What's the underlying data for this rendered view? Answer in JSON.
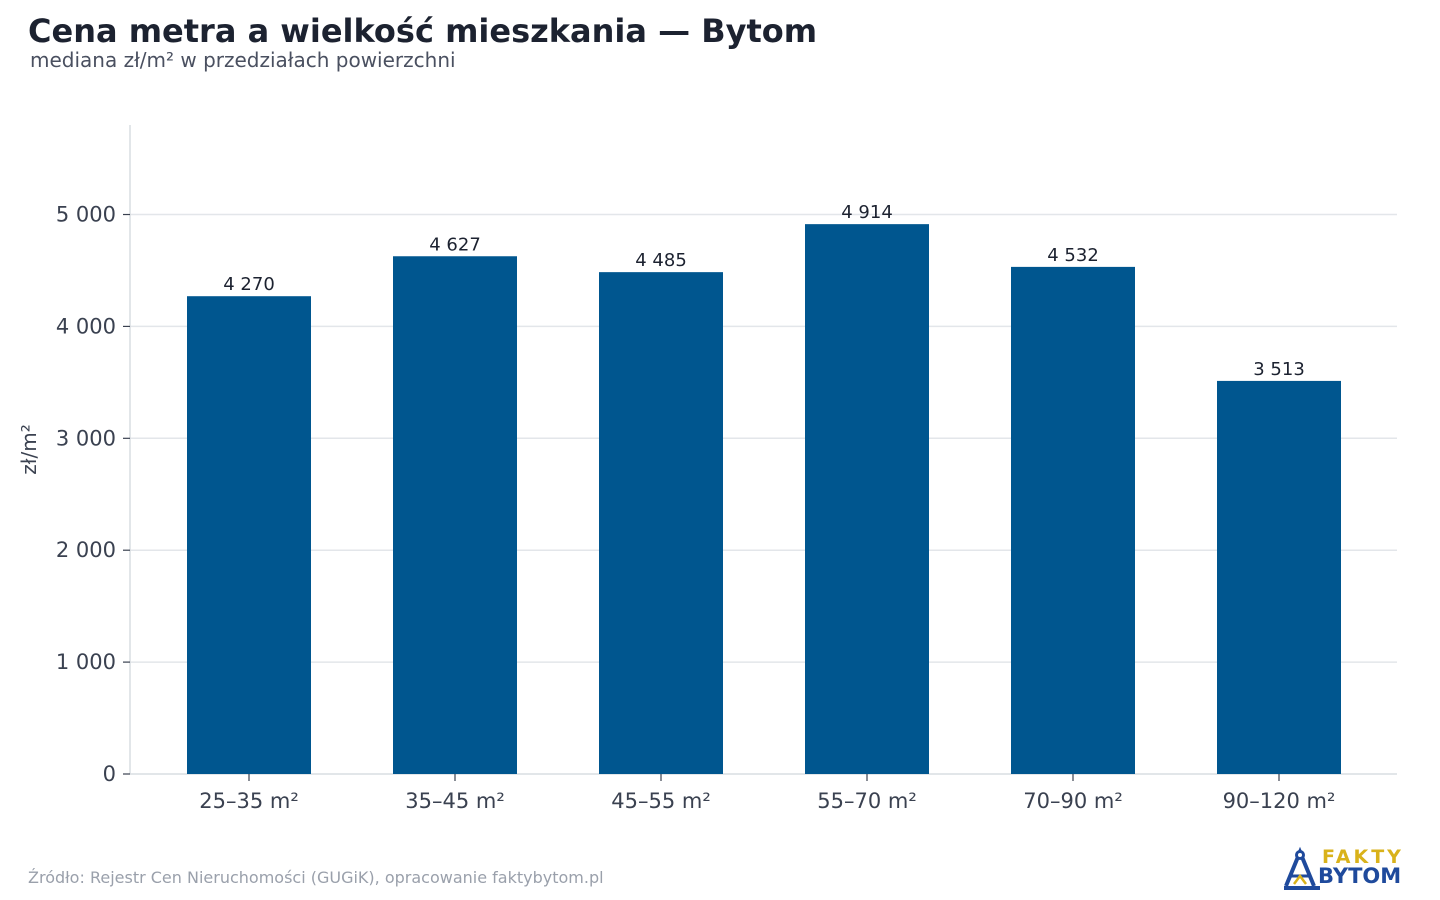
{
  "header": {
    "title": "Cena metra a wielkość mieszkania — Bytom",
    "subtitle": "mediana zł/m² w przedziałach powierzchni"
  },
  "footer": {
    "source": "Źródło: Rejestr Cen Nieruchomości (GUGiK), opracowanie faktybytom.pl"
  },
  "logo": {
    "line1": "FAKTY",
    "line2": "BYTOM",
    "icon": "mine-headframe-icon"
  },
  "colors": {
    "bar": "#00568f",
    "grid": "#e3e6ea",
    "axis": "#d9dde2",
    "text": "#3a4150",
    "label": "#1c2230"
  },
  "chart_data": {
    "type": "bar",
    "categories": [
      "25–35 m²",
      "35–45 m²",
      "45–55 m²",
      "55–70 m²",
      "70–90 m²",
      "90–120 m²"
    ],
    "values": [
      4270,
      4627,
      4485,
      4914,
      4532,
      3513
    ],
    "value_labels": [
      "4 270",
      "4 627",
      "4 485",
      "4 914",
      "4 532",
      "3 513"
    ],
    "ylabel": "zł/m²",
    "ylim": [
      0,
      5800
    ],
    "yticks": [
      0,
      1000,
      2000,
      3000,
      4000,
      5000
    ],
    "ytick_labels": [
      "0",
      "1 000",
      "2 000",
      "3 000",
      "4 000",
      "5 000"
    ],
    "grid": true
  }
}
